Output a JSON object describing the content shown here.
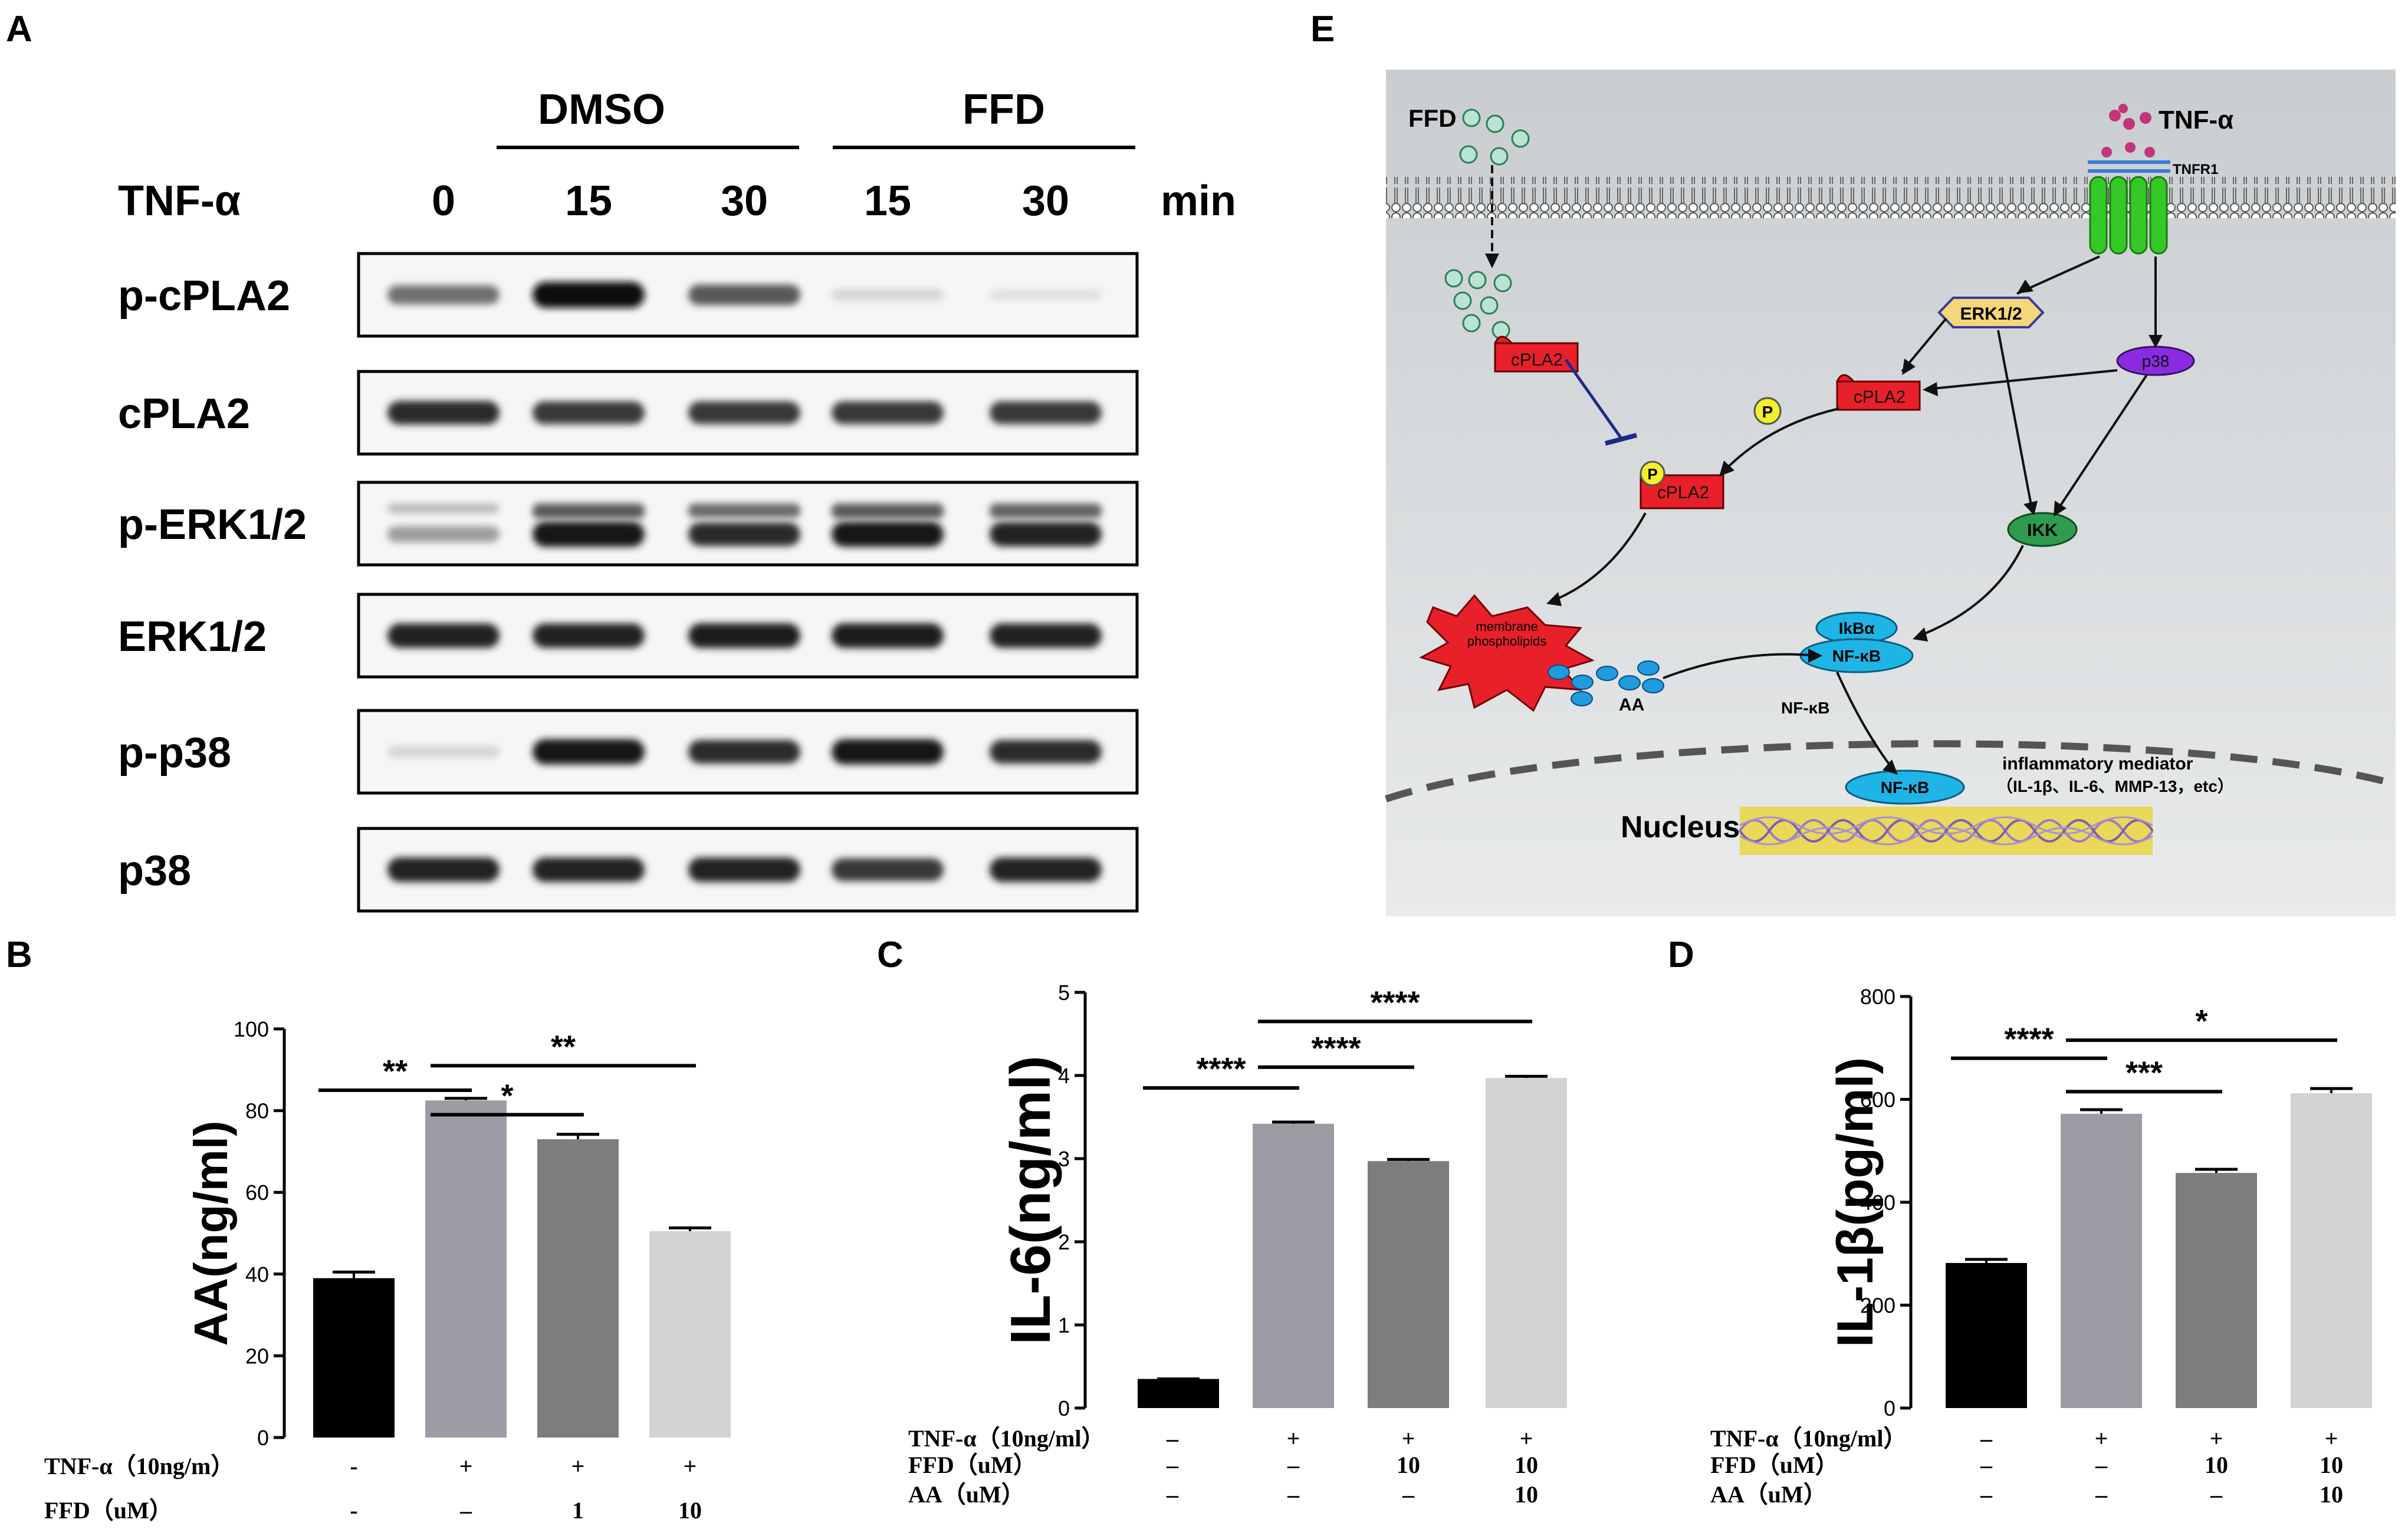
{
  "panels": {
    "A": {
      "letter": "A",
      "groups": [
        "DMSO",
        "FFD"
      ],
      "treatment_label": "TNF-α",
      "time_points": [
        "0",
        "15",
        "30",
        "15",
        "30"
      ],
      "time_unit": "min",
      "rows": [
        {
          "label": "p-cPLA2",
          "intensity": [
            0.55,
            1.0,
            0.65,
            0.1,
            0.05
          ],
          "double": false
        },
        {
          "label": "cPLA2",
          "intensity": [
            0.85,
            0.8,
            0.8,
            0.8,
            0.8
          ],
          "double": false
        },
        {
          "label": "p-ERK1/2",
          "intensity": [
            0.35,
            0.95,
            0.85,
            0.95,
            0.9
          ],
          "double": true
        },
        {
          "label": "ERK1/2",
          "intensity": [
            0.9,
            0.9,
            0.92,
            0.92,
            0.9
          ],
          "double": false
        },
        {
          "label": "p-p38",
          "intensity": [
            0.1,
            0.95,
            0.85,
            0.95,
            0.85
          ],
          "double": false
        },
        {
          "label": "p38",
          "intensity": [
            0.9,
            0.9,
            0.9,
            0.8,
            0.9
          ],
          "double": false
        }
      ]
    },
    "E": {
      "letter": "E",
      "ffd": "FFD",
      "tnf": "TNF-α",
      "tnfr": "TNFR1",
      "erk": "ERK1/2",
      "p38": "p38",
      "cpla2": "cPLA2",
      "p": "P",
      "ikk": "IKK",
      "membrane_line1": "membrane",
      "membrane_line2": "phospholipids",
      "aa": "AA",
      "ikba": "IkBα",
      "nfkb": "NF-κB",
      "mediator_title": "inflammatory mediator",
      "mediator_list": "（IL-1β、IL-6、MMP-13，etc）",
      "nucleus": "Nucleus",
      "colors": {
        "membrane_bg": "#d3d7d9",
        "cpla2": "#e8202a",
        "erk": "#f6d67a",
        "p38": "#8a2be2",
        "ikk": "#2e9b4f",
        "nfkb": "#1fb4e6",
        "receptor": "#35c928",
        "ffd_ball": "#b9e3d2",
        "dna": "#e9d85a"
      }
    }
  },
  "chart_data": [
    {
      "type": "bar",
      "panel": "B",
      "ylabel": "AA(ng/ml)",
      "ylim": [
        0,
        100
      ],
      "yticks": [
        "0",
        "20",
        "40",
        "60",
        "80",
        "100"
      ],
      "values": [
        39,
        82.5,
        73,
        50.5
      ],
      "errors": [
        1.5,
        0.5,
        1.2,
        0.8
      ],
      "colors": [
        "#000000",
        "#9c9ca4",
        "#7d7d7d",
        "#d3d3d3"
      ],
      "conditions": [
        {
          "label": "TNF-α（10ng/m）",
          "values": [
            "-",
            "+",
            "+",
            "+"
          ]
        },
        {
          "label": "FFD（uM）",
          "values": [
            "-",
            "–",
            "1",
            "10"
          ]
        }
      ],
      "significance": [
        {
          "from": 0,
          "to": 1,
          "label": "**",
          "level": 85
        },
        {
          "from": 1,
          "to": 2,
          "label": "*",
          "level": 79
        },
        {
          "from": 1,
          "to": 3,
          "label": "**",
          "level": 91
        }
      ]
    },
    {
      "type": "bar",
      "panel": "C",
      "ylabel": "IL-6(ng/ml)",
      "ylim": [
        0,
        5
      ],
      "yticks": [
        "0",
        "1",
        "2",
        "3",
        "4",
        "5"
      ],
      "values": [
        0.35,
        3.42,
        2.97,
        3.97
      ],
      "errors": [
        0,
        0.02,
        0.02,
        0.02
      ],
      "colors": [
        "#000000",
        "#9c9ca4",
        "#7d7d7d",
        "#d3d3d3"
      ],
      "conditions": [
        {
          "label": "TNF-α（10ng/ml）",
          "values": [
            "–",
            "+",
            "+",
            "+"
          ]
        },
        {
          "label": "FFD（uM）",
          "values": [
            "–",
            "–",
            "10",
            "10"
          ]
        },
        {
          "label": "AA（uM）",
          "values": [
            "–",
            "–",
            "–",
            "10"
          ]
        }
      ],
      "significance": [
        {
          "from": 0,
          "to": 1,
          "label": "****",
          "level": 3.85
        },
        {
          "from": 1,
          "to": 2,
          "label": "****",
          "level": 4.1
        },
        {
          "from": 1,
          "to": 3,
          "label": "****",
          "level": 4.65
        }
      ]
    },
    {
      "type": "bar",
      "panel": "D",
      "ylabel": "IL-1β(pg/ml)",
      "ylim": [
        0,
        800
      ],
      "yticks": [
        "0",
        "200",
        "400",
        "600",
        "800"
      ],
      "values": [
        282,
        572,
        457,
        612
      ],
      "errors": [
        7,
        8,
        7,
        9
      ],
      "colors": [
        "#000000",
        "#9c9ca4",
        "#7d7d7d",
        "#d3d3d3"
      ],
      "conditions": [
        {
          "label": "TNF-α（10ng/ml）",
          "values": [
            "–",
            "+",
            "+",
            "+"
          ]
        },
        {
          "label": "FFD（uM）",
          "values": [
            "–",
            "–",
            "10",
            "10"
          ]
        },
        {
          "label": "AA（uM）",
          "values": [
            "–",
            "–",
            "–",
            "10"
          ]
        }
      ],
      "significance": [
        {
          "from": 0,
          "to": 1,
          "label": "****",
          "level": 680
        },
        {
          "from": 1,
          "to": 2,
          "label": "***",
          "level": 615
        },
        {
          "from": 1,
          "to": 3,
          "label": "*",
          "level": 715
        }
      ]
    }
  ]
}
